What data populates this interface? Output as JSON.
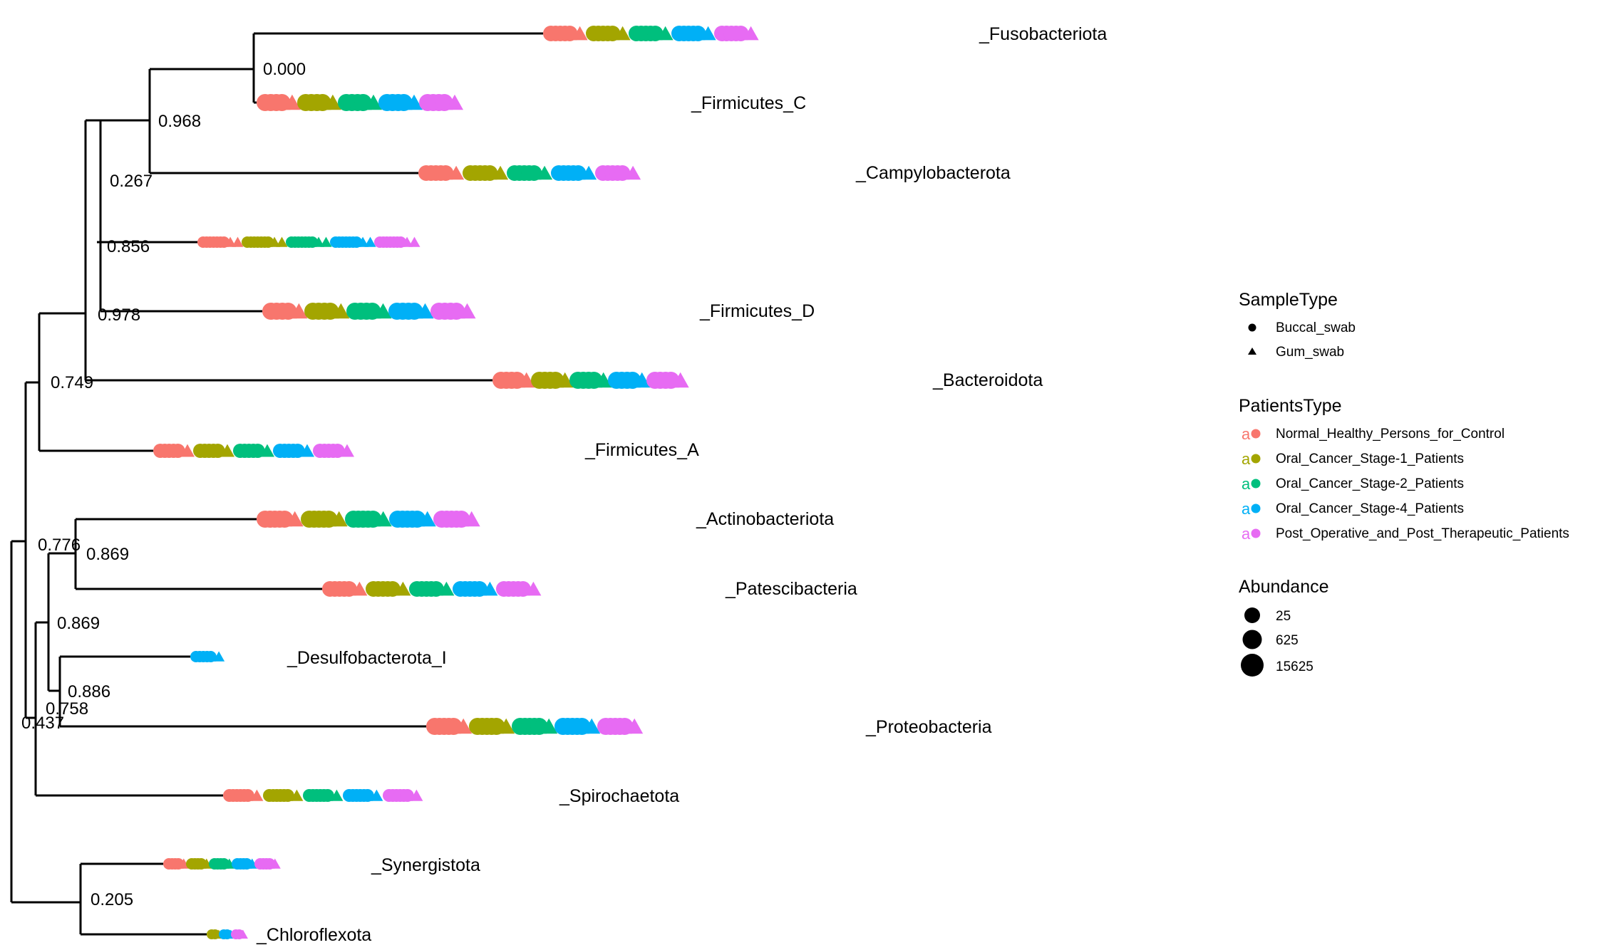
{
  "colors": {
    "Normal_Healthy_Persons_for_Control": "#F8766D",
    "Oral_Cancer_Stage-1_Patients": "#A3A500",
    "Oral_Cancer_Stage-2_Patients": "#00BF7D",
    "Oral_Cancer_Stage-4_Patients": "#00B0F6",
    "Post_Operative_and_Post_Therapeutic_Patients": "#E76BF3"
  },
  "taxa": [
    {
      "label": "_Fusobacteriota",
      "groups": [
        "Normal_Healthy_Persons_for_Control",
        "Oral_Cancer_Stage-1_Patients",
        "Oral_Cancer_Stage-2_Patients",
        "Oral_Cancer_Stage-4_Patients",
        "Post_Operative_and_Post_Therapeutic_Patients"
      ]
    },
    {
      "label": "_Firmicutes_C",
      "groups": [
        "Normal_Healthy_Persons_for_Control",
        "Oral_Cancer_Stage-1_Patients",
        "Oral_Cancer_Stage-2_Patients",
        "Oral_Cancer_Stage-4_Patients",
        "Post_Operative_and_Post_Therapeutic_Patients"
      ]
    },
    {
      "label": "_Campylobacterota",
      "groups": [
        "Normal_Healthy_Persons_for_Control",
        "Oral_Cancer_Stage-1_Patients",
        "Oral_Cancer_Stage-2_Patients",
        "Oral_Cancer_Stage-4_Patients",
        "Post_Operative_and_Post_Therapeutic_Patients"
      ]
    },
    {
      "label": "",
      "groups": [
        "Normal_Healthy_Persons_for_Control",
        "Oral_Cancer_Stage-1_Patients",
        "Oral_Cancer_Stage-2_Patients",
        "Oral_Cancer_Stage-4_Patients",
        "Post_Operative_and_Post_Therapeutic_Patients"
      ]
    },
    {
      "label": "_Firmicutes_D",
      "groups": [
        "Normal_Healthy_Persons_for_Control",
        "Oral_Cancer_Stage-1_Patients",
        "Oral_Cancer_Stage-2_Patients",
        "Oral_Cancer_Stage-4_Patients",
        "Post_Operative_and_Post_Therapeutic_Patients"
      ]
    },
    {
      "label": "_Bacteroidota",
      "groups": [
        "Normal_Healthy_Persons_for_Control",
        "Oral_Cancer_Stage-1_Patients",
        "Oral_Cancer_Stage-2_Patients",
        "Oral_Cancer_Stage-4_Patients",
        "Post_Operative_and_Post_Therapeutic_Patients"
      ]
    },
    {
      "label": "_Firmicutes_A",
      "groups": [
        "Normal_Healthy_Persons_for_Control",
        "Oral_Cancer_Stage-1_Patients",
        "Oral_Cancer_Stage-2_Patients",
        "Oral_Cancer_Stage-4_Patients",
        "Post_Operative_and_Post_Therapeutic_Patients"
      ]
    },
    {
      "label": "_Actinobacteriota",
      "groups": [
        "Normal_Healthy_Persons_for_Control",
        "Oral_Cancer_Stage-1_Patients",
        "Oral_Cancer_Stage-2_Patients",
        "Oral_Cancer_Stage-4_Patients",
        "Post_Operative_and_Post_Therapeutic_Patients"
      ]
    },
    {
      "label": "_Patescibacteria",
      "groups": [
        "Normal_Healthy_Persons_for_Control",
        "Oral_Cancer_Stage-1_Patients",
        "Oral_Cancer_Stage-2_Patients",
        "Oral_Cancer_Stage-4_Patients",
        "Post_Operative_and_Post_Therapeutic_Patients"
      ]
    },
    {
      "label": "_Desulfobacterota_I",
      "groups": [
        "Oral_Cancer_Stage-4_Patients"
      ]
    },
    {
      "label": "_Proteobacteria",
      "groups": [
        "Normal_Healthy_Persons_for_Control",
        "Oral_Cancer_Stage-1_Patients",
        "Oral_Cancer_Stage-2_Patients",
        "Oral_Cancer_Stage-4_Patients",
        "Post_Operative_and_Post_Therapeutic_Patients"
      ]
    },
    {
      "label": "_Spirochaetota",
      "groups": [
        "Normal_Healthy_Persons_for_Control",
        "Oral_Cancer_Stage-1_Patients",
        "Oral_Cancer_Stage-2_Patients",
        "Oral_Cancer_Stage-4_Patients",
        "Post_Operative_and_Post_Therapeutic_Patients"
      ]
    },
    {
      "label": "_Synergistota",
      "groups": [
        "Normal_Healthy_Persons_for_Control",
        "Oral_Cancer_Stage-1_Patients",
        "Oral_Cancer_Stage-2_Patients",
        "Oral_Cancer_Stage-4_Patients",
        "Post_Operative_and_Post_Therapeutic_Patients"
      ]
    },
    {
      "label": "_Chloroflexota",
      "groups": [
        "Oral_Cancer_Stage-1_Patients",
        "Oral_Cancer_Stage-4_Patients",
        "Post_Operative_and_Post_Therapeutic_Patients"
      ]
    }
  ],
  "bootstrap_values": [
    "0.000",
    "0.968",
    "0.267",
    "0.856",
    "0.978",
    "0.749",
    "0.776",
    "0.869",
    "0.869",
    "0.886",
    "0.758",
    "0.437",
    "0.205"
  ],
  "legend": {
    "sample_type": {
      "title": "SampleType",
      "items": [
        "Buccal_swab",
        "Gum_swab"
      ]
    },
    "patients_type": {
      "title": "PatientsType",
      "items": [
        "Normal_Healthy_Persons_for_Control",
        "Oral_Cancer_Stage-1_Patients",
        "Oral_Cancer_Stage-2_Patients",
        "Oral_Cancer_Stage-4_Patients",
        "Post_Operative_and_Post_Therapeutic_Patients"
      ],
      "key_glyph": "a"
    },
    "abundance": {
      "title": "Abundance",
      "items": [
        "25",
        "625",
        "15625"
      ]
    }
  }
}
